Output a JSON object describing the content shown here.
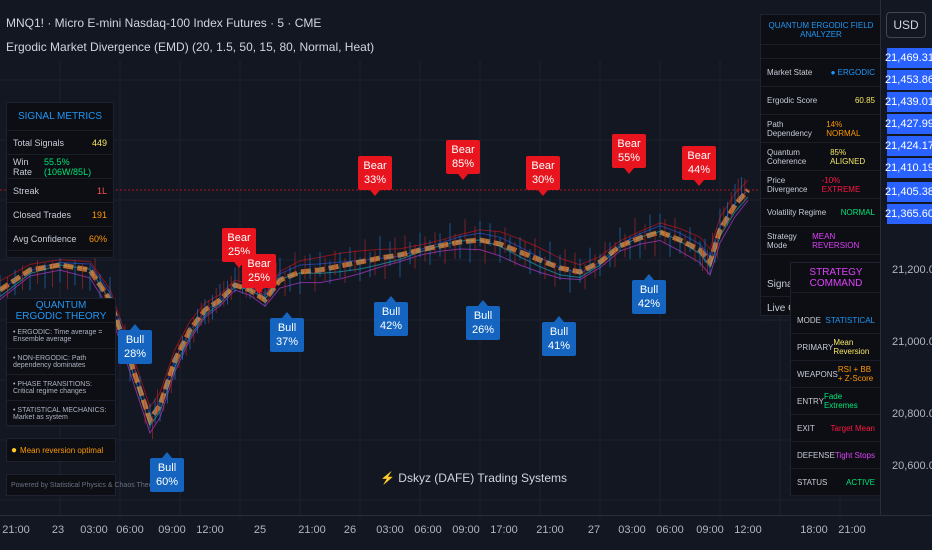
{
  "header": {
    "symbol_line": "MNQ1! · Micro E-mini Nasdaq-100 Index Futures · 5 · CME",
    "indicator_line": "Ergodic Market Divergence (EMD) (20, 1.5, 50, 15, 80, Normal, Heat)"
  },
  "colors": {
    "bg": "#131722",
    "bear": "#e8141e",
    "bull": "#1565c0",
    "accent": "#2962ff",
    "orange": "#e8903a"
  },
  "signal_metrics": {
    "title": "SIGNAL METRICS",
    "rows": [
      {
        "label": "Total Signals",
        "value": "449",
        "color": "#f5e663"
      },
      {
        "label": "Win Rate",
        "value": "55.5% (106W/85L)",
        "color": "#00e676"
      },
      {
        "label": "Streak",
        "value": "1L",
        "color": "#ff5252"
      },
      {
        "label": "Closed Trades",
        "value": "191",
        "color": "#ff9800"
      },
      {
        "label": "Avg Confidence",
        "value": "60%",
        "color": "#ff9800"
      }
    ]
  },
  "theory": {
    "title": "QUANTUM ERGODIC THEORY",
    "lines": [
      "• ERGODIC: Time average = Ensemble average",
      "• NON-ERGODIC: Path dependency dominates",
      "• PHASE TRANSITIONS: Critical regime changes",
      "• STATISTICAL MECHANICS: Market as system"
    ],
    "tip": "Mean reversion optimal",
    "tip_icon": "lightbulb-icon",
    "footer": "Powered by Statistical Physics & Chaos Theory"
  },
  "analyzer": {
    "title": "QUANTUM ERGODIC FIELD ANALYZER",
    "rows": [
      {
        "label": "Market State",
        "value": "● ERGODIC",
        "color": "#2196f3"
      },
      {
        "label": "Ergodic Score",
        "value": "60.85",
        "color": "#f5e663"
      },
      {
        "label": "Path Dependency",
        "value": "14% NORMAL",
        "color": "#ff9800"
      },
      {
        "label": "Quantum Coherence",
        "value": "85% ALIGNED",
        "color": "#f5e663"
      },
      {
        "label": "Price Divergence",
        "value": "-10% EXTREME",
        "color": "#ff1744"
      },
      {
        "label": "Volatility Regime",
        "value": "NORMAL",
        "color": "#00e676"
      },
      {
        "label": "Strategy Mode",
        "value": "MEAN REVERSION",
        "color": "#e040fb"
      }
    ],
    "extra_rows": [
      "Signal Str",
      "Live Conf"
    ]
  },
  "strategy": {
    "title": "STRATEGY COMMAND",
    "rows": [
      {
        "label": "MODE",
        "value": "STATISTICAL",
        "color": "#2196f3"
      },
      {
        "label": "PRIMARY",
        "value": "Mean Reversion",
        "color": "#f5e663"
      },
      {
        "label": "WEAPONS",
        "value": "RSI + BB + Z-Score",
        "color": "#ff9800"
      },
      {
        "label": "ENTRY",
        "value": "Fade Extremes",
        "color": "#00e676"
      },
      {
        "label": "EXIT",
        "value": "Target Mean",
        "color": "#ff1744"
      },
      {
        "label": "DEFENSE",
        "value": "Tight Stops",
        "color": "#e040fb"
      },
      {
        "label": "STATUS",
        "value": "ACTIVE",
        "color": "#00e676"
      }
    ]
  },
  "price_axis": {
    "currency": "USD",
    "highlighted": [
      "21,469.31",
      "21,453.86",
      "21,439.01",
      "21,427.99",
      "21,424.17",
      "21,410.19",
      "21,405.38",
      "21,365.60"
    ],
    "ticks": [
      "21,200.00",
      "21,000.00",
      "20,800.00",
      "20,600.00"
    ]
  },
  "time_axis": {
    "labels": [
      "21:00",
      "23",
      "03:00",
      "06:00",
      "09:00",
      "12:00",
      "25",
      "21:00",
      "26",
      "03:00",
      "06:00",
      "09:00",
      "17:00",
      "21:00",
      "27",
      "03:00",
      "06:00",
      "09:00",
      "12:00",
      "18:00",
      "21:00"
    ]
  },
  "signals": [
    {
      "type": "Bear",
      "pct": "25%"
    },
    {
      "type": "Bear",
      "pct": "25%"
    },
    {
      "type": "Bear",
      "pct": "33%"
    },
    {
      "type": "Bear",
      "pct": "85%"
    },
    {
      "type": "Bear",
      "pct": "30%"
    },
    {
      "type": "Bear",
      "pct": "55%"
    },
    {
      "type": "Bear",
      "pct": "44%"
    },
    {
      "type": "Bull",
      "pct": "28%"
    },
    {
      "type": "Bull",
      "pct": "60%"
    },
    {
      "type": "Bull",
      "pct": "37%"
    },
    {
      "type": "Bull",
      "pct": "42%"
    },
    {
      "type": "Bull",
      "pct": "26%"
    },
    {
      "type": "Bull",
      "pct": "41%"
    },
    {
      "type": "Bull",
      "pct": "42%"
    }
  ],
  "watermark": {
    "icon": "lightning-icon",
    "text": "Dskyz (DAFE) Trading Systems"
  }
}
